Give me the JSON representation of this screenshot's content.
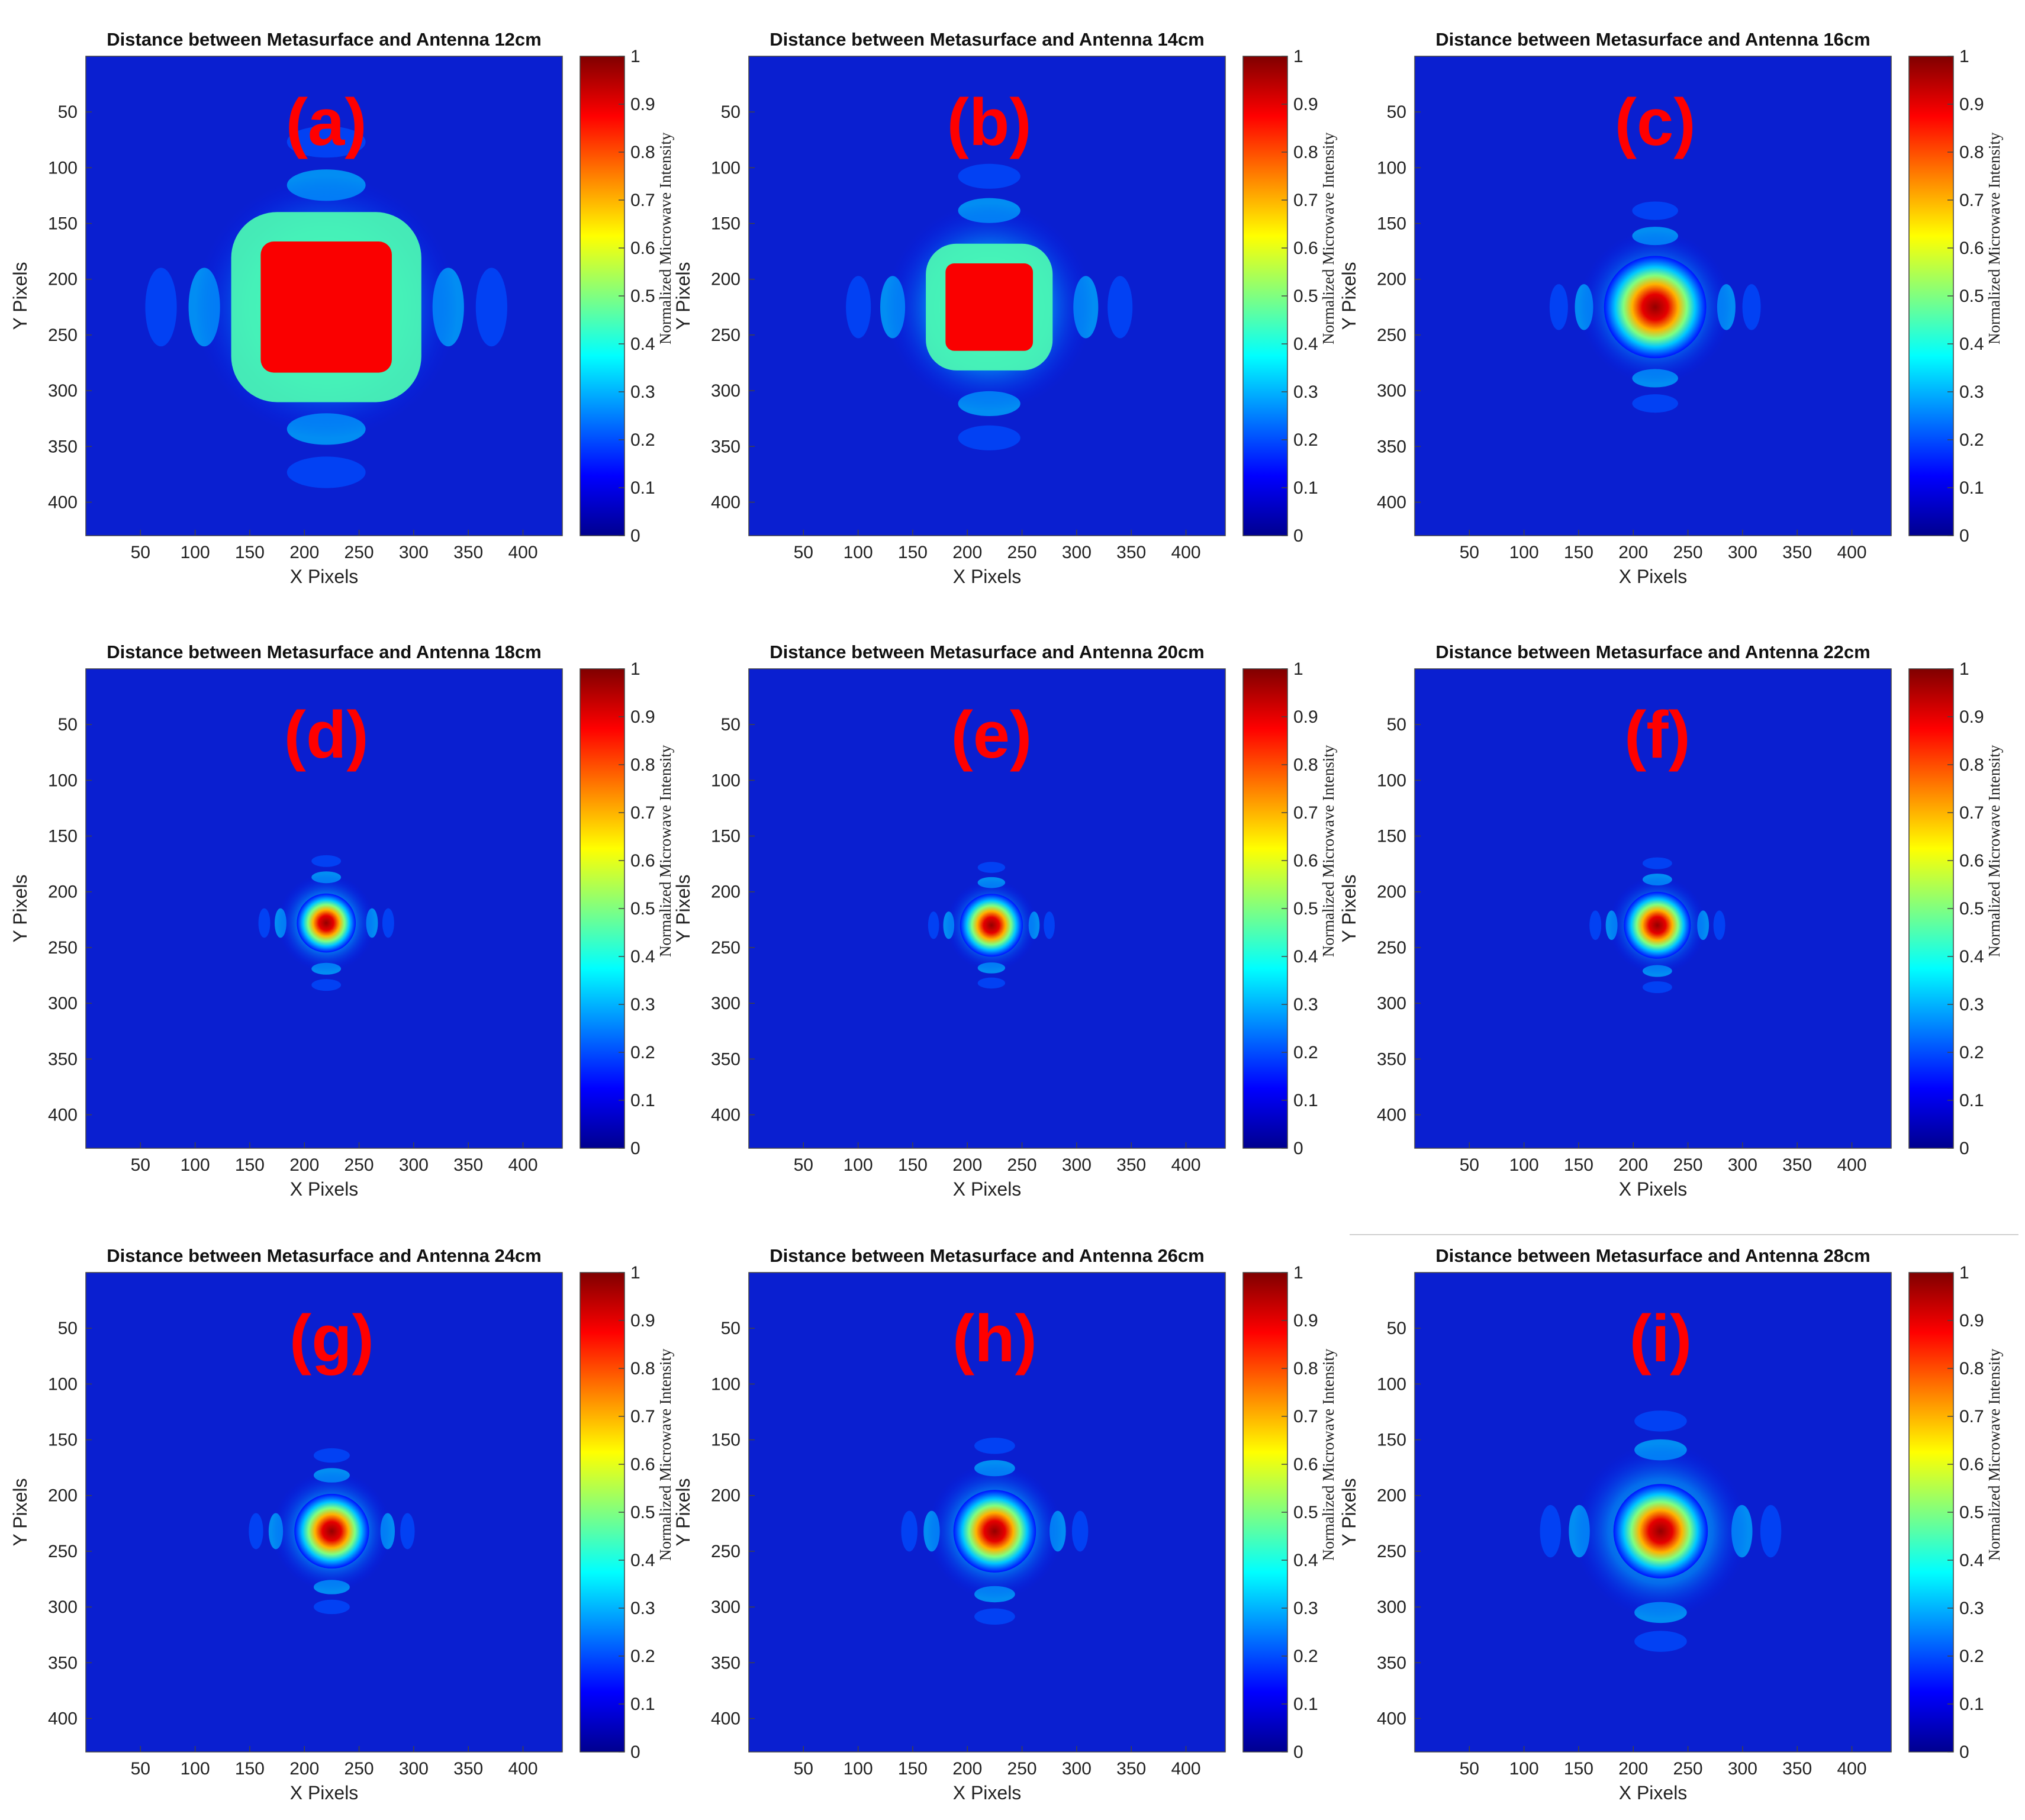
{
  "figure": {
    "colormap": [
      "#00008f",
      "#0000ff",
      "#0080ff",
      "#00ffff",
      "#80ff80",
      "#ffff00",
      "#ff8000",
      "#ff0000",
      "#800000"
    ],
    "background_color": "#0a1fd0",
    "label_color": "#ff0000"
  },
  "chart_data": [
    {
      "type": "heatmap",
      "label": "(a)",
      "title": "Distance between Metasurface and Antenna 12cm",
      "xlabel": "X Pixels",
      "ylabel": "Y Pixels",
      "colorbar_label": "Normalized Microwave Intensity",
      "xlim": [
        0,
        436
      ],
      "ylim": [
        0,
        430
      ],
      "xticks": [
        50,
        100,
        150,
        200,
        250,
        300,
        350,
        400
      ],
      "yticks": [
        50,
        100,
        150,
        200,
        250,
        300,
        350,
        400
      ],
      "colorbar_ticks": [
        0,
        0.1,
        0.2,
        0.3,
        0.4,
        0.5,
        0.6,
        0.7,
        0.8,
        0.9,
        1
      ],
      "clim": [
        0,
        1
      ],
      "focus_center": [
        220,
        225
      ],
      "focus_shape": "square",
      "focus_half_width": 60,
      "halo_radius": 120,
      "peak": 1.0
    },
    {
      "type": "heatmap",
      "label": "(b)",
      "title": "Distance between Metasurface and Antenna 14cm",
      "xlabel": "X Pixels",
      "ylabel": "Y Pixels",
      "colorbar_label": "Normalized Microwave Intensity",
      "xlim": [
        0,
        436
      ],
      "ylim": [
        0,
        430
      ],
      "xticks": [
        50,
        100,
        150,
        200,
        250,
        300,
        350,
        400
      ],
      "yticks": [
        50,
        100,
        150,
        200,
        250,
        300,
        350,
        400
      ],
      "colorbar_ticks": [
        0,
        0.1,
        0.2,
        0.3,
        0.4,
        0.5,
        0.6,
        0.7,
        0.8,
        0.9,
        1
      ],
      "clim": [
        0,
        1
      ],
      "focus_center": [
        220,
        225
      ],
      "focus_shape": "square",
      "focus_half_width": 40,
      "halo_radius": 95,
      "peak": 1.0
    },
    {
      "type": "heatmap",
      "label": "(c)",
      "title": "Distance between Metasurface and Antenna 16cm",
      "xlabel": "X Pixels",
      "ylabel": "Y Pixels",
      "colorbar_label": "Normalized Microwave Intensity",
      "xlim": [
        0,
        436
      ],
      "ylim": [
        0,
        430
      ],
      "xticks": [
        50,
        100,
        150,
        200,
        250,
        300,
        350,
        400
      ],
      "yticks": [
        50,
        100,
        150,
        200,
        250,
        300,
        350,
        400
      ],
      "colorbar_ticks": [
        0,
        0.1,
        0.2,
        0.3,
        0.4,
        0.5,
        0.6,
        0.7,
        0.8,
        0.9,
        1
      ],
      "clim": [
        0,
        1
      ],
      "focus_center": [
        220,
        225
      ],
      "focus_shape": "round",
      "focus_half_width": 26,
      "halo_radius": 70,
      "peak": 1.0
    },
    {
      "type": "heatmap",
      "label": "(d)",
      "title": "Distance between Metasurface and Antenna 18cm",
      "xlabel": "X Pixels",
      "ylabel": "Y Pixels",
      "colorbar_label": "Normalized Microwave Intensity",
      "xlim": [
        0,
        436
      ],
      "ylim": [
        0,
        430
      ],
      "xticks": [
        50,
        100,
        150,
        200,
        250,
        300,
        350,
        400
      ],
      "yticks": [
        50,
        100,
        150,
        200,
        250,
        300,
        350,
        400
      ],
      "colorbar_ticks": [
        0,
        0.1,
        0.2,
        0.3,
        0.4,
        0.5,
        0.6,
        0.7,
        0.8,
        0.9,
        1
      ],
      "clim": [
        0,
        1
      ],
      "focus_center": [
        220,
        228
      ],
      "focus_shape": "round",
      "focus_half_width": 15,
      "halo_radius": 45,
      "peak": 1.0
    },
    {
      "type": "heatmap",
      "label": "(e)",
      "title": "Distance between Metasurface and Antenna 20cm",
      "xlabel": "X Pixels",
      "ylabel": "Y Pixels",
      "colorbar_label": "Normalized Microwave Intensity",
      "xlim": [
        0,
        436
      ],
      "ylim": [
        0,
        430
      ],
      "xticks": [
        50,
        100,
        150,
        200,
        250,
        300,
        350,
        400
      ],
      "yticks": [
        50,
        100,
        150,
        200,
        250,
        300,
        350,
        400
      ],
      "colorbar_ticks": [
        0,
        0.1,
        0.2,
        0.3,
        0.4,
        0.5,
        0.6,
        0.7,
        0.8,
        0.9,
        1
      ],
      "clim": [
        0,
        1
      ],
      "focus_center": [
        222,
        230
      ],
      "focus_shape": "round",
      "focus_half_width": 16,
      "halo_radius": 42,
      "peak": 1.0
    },
    {
      "type": "heatmap",
      "label": "(f)",
      "title": "Distance between Metasurface and Antenna 22cm",
      "xlabel": "X Pixels",
      "ylabel": "Y Pixels",
      "colorbar_label": "Normalized Microwave Intensity",
      "xlim": [
        0,
        436
      ],
      "ylim": [
        0,
        430
      ],
      "xticks": [
        50,
        100,
        150,
        200,
        250,
        300,
        350,
        400
      ],
      "yticks": [
        50,
        100,
        150,
        200,
        250,
        300,
        350,
        400
      ],
      "colorbar_ticks": [
        0,
        0.1,
        0.2,
        0.3,
        0.4,
        0.5,
        0.6,
        0.7,
        0.8,
        0.9,
        1
      ],
      "clim": [
        0,
        1
      ],
      "focus_center": [
        222,
        230
      ],
      "focus_shape": "round",
      "focus_half_width": 17,
      "halo_radius": 45,
      "peak": 1.0
    },
    {
      "type": "heatmap",
      "label": "(g)",
      "title": "Distance between Metasurface and Antenna 24cm",
      "xlabel": "X Pixels",
      "ylabel": "Y Pixels",
      "colorbar_label": "Normalized Microwave Intensity",
      "xlim": [
        0,
        436
      ],
      "ylim": [
        0,
        430
      ],
      "xticks": [
        50,
        100,
        150,
        200,
        250,
        300,
        350,
        400
      ],
      "yticks": [
        50,
        100,
        150,
        200,
        250,
        300,
        350,
        400
      ],
      "colorbar_ticks": [
        0,
        0.1,
        0.2,
        0.3,
        0.4,
        0.5,
        0.6,
        0.7,
        0.8,
        0.9,
        1
      ],
      "clim": [
        0,
        1
      ],
      "focus_center": [
        225,
        232
      ],
      "focus_shape": "round",
      "focus_half_width": 19,
      "halo_radius": 55,
      "peak": 1.0
    },
    {
      "type": "heatmap",
      "label": "(h)",
      "title": "Distance between Metasurface and Antenna 26cm",
      "xlabel": "X Pixels",
      "ylabel": "Y Pixels",
      "colorbar_label": "Normalized Microwave Intensity",
      "xlim": [
        0,
        436
      ],
      "ylim": [
        0,
        430
      ],
      "xticks": [
        50,
        100,
        150,
        200,
        250,
        300,
        350,
        400
      ],
      "yticks": [
        50,
        100,
        150,
        200,
        250,
        300,
        350,
        400
      ],
      "colorbar_ticks": [
        0,
        0.1,
        0.2,
        0.3,
        0.4,
        0.5,
        0.6,
        0.7,
        0.8,
        0.9,
        1
      ],
      "clim": [
        0,
        1
      ],
      "focus_center": [
        225,
        232
      ],
      "focus_shape": "round",
      "focus_half_width": 21,
      "halo_radius": 62,
      "peak": 1.0
    },
    {
      "type": "heatmap",
      "label": "(i)",
      "title": "Distance between Metasurface and Antenna 28cm",
      "xlabel": "X Pixels",
      "ylabel": "Y Pixels",
      "colorbar_label": "Normalized Microwave Intensity",
      "xlim": [
        0,
        436
      ],
      "ylim": [
        0,
        430
      ],
      "xticks": [
        50,
        100,
        150,
        200,
        250,
        300,
        350,
        400
      ],
      "yticks": [
        50,
        100,
        150,
        200,
        250,
        300,
        350,
        400
      ],
      "colorbar_ticks": [
        0,
        0.1,
        0.2,
        0.3,
        0.4,
        0.5,
        0.6,
        0.7,
        0.8,
        0.9,
        1
      ],
      "clim": [
        0,
        1
      ],
      "focus_center": [
        225,
        232
      ],
      "focus_shape": "round",
      "focus_half_width": 24,
      "halo_radius": 80,
      "peak": 1.0
    }
  ]
}
